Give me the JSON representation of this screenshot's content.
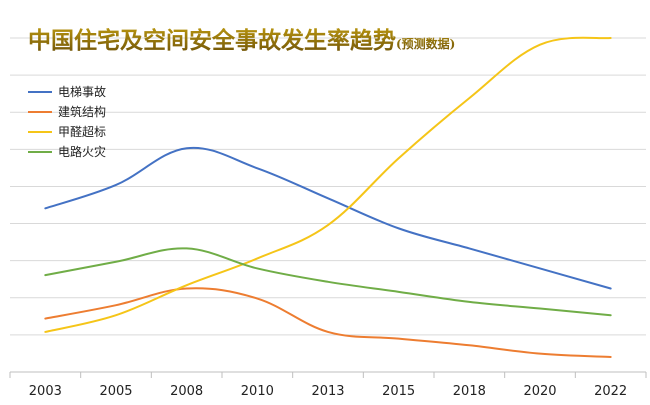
{
  "chart_data": {
    "type": "line",
    "title": "中国住宅及空间安全事故发生率趋势",
    "subtitle": "(预测数据)",
    "title_color": "#8a6b0c",
    "categories": [
      "2003",
      "2005",
      "2008",
      "2010",
      "2013",
      "2015",
      "2018",
      "2020",
      "2022"
    ],
    "ylim": [
      0,
      10
    ],
    "grid": true,
    "legend_position": "top-left",
    "series": [
      {
        "name": "电梯事故",
        "color": "#4472c4",
        "values": [
          4.9,
          5.6,
          6.7,
          6.1,
          5.2,
          4.3,
          3.7,
          3.1,
          2.5
        ]
      },
      {
        "name": "建筑结构",
        "color": "#ed7d31",
        "values": [
          1.6,
          2.0,
          2.5,
          2.2,
          1.2,
          1.0,
          0.8,
          0.55,
          0.45
        ]
      },
      {
        "name": "甲醛超标",
        "color": "#f5c518",
        "values": [
          1.2,
          1.7,
          2.6,
          3.4,
          4.4,
          6.4,
          8.2,
          9.8,
          10.0
        ]
      },
      {
        "name": "电路火灾",
        "color": "#70ad47",
        "values": [
          2.9,
          3.3,
          3.7,
          3.1,
          2.7,
          2.4,
          2.1,
          1.9,
          1.7
        ]
      }
    ]
  }
}
